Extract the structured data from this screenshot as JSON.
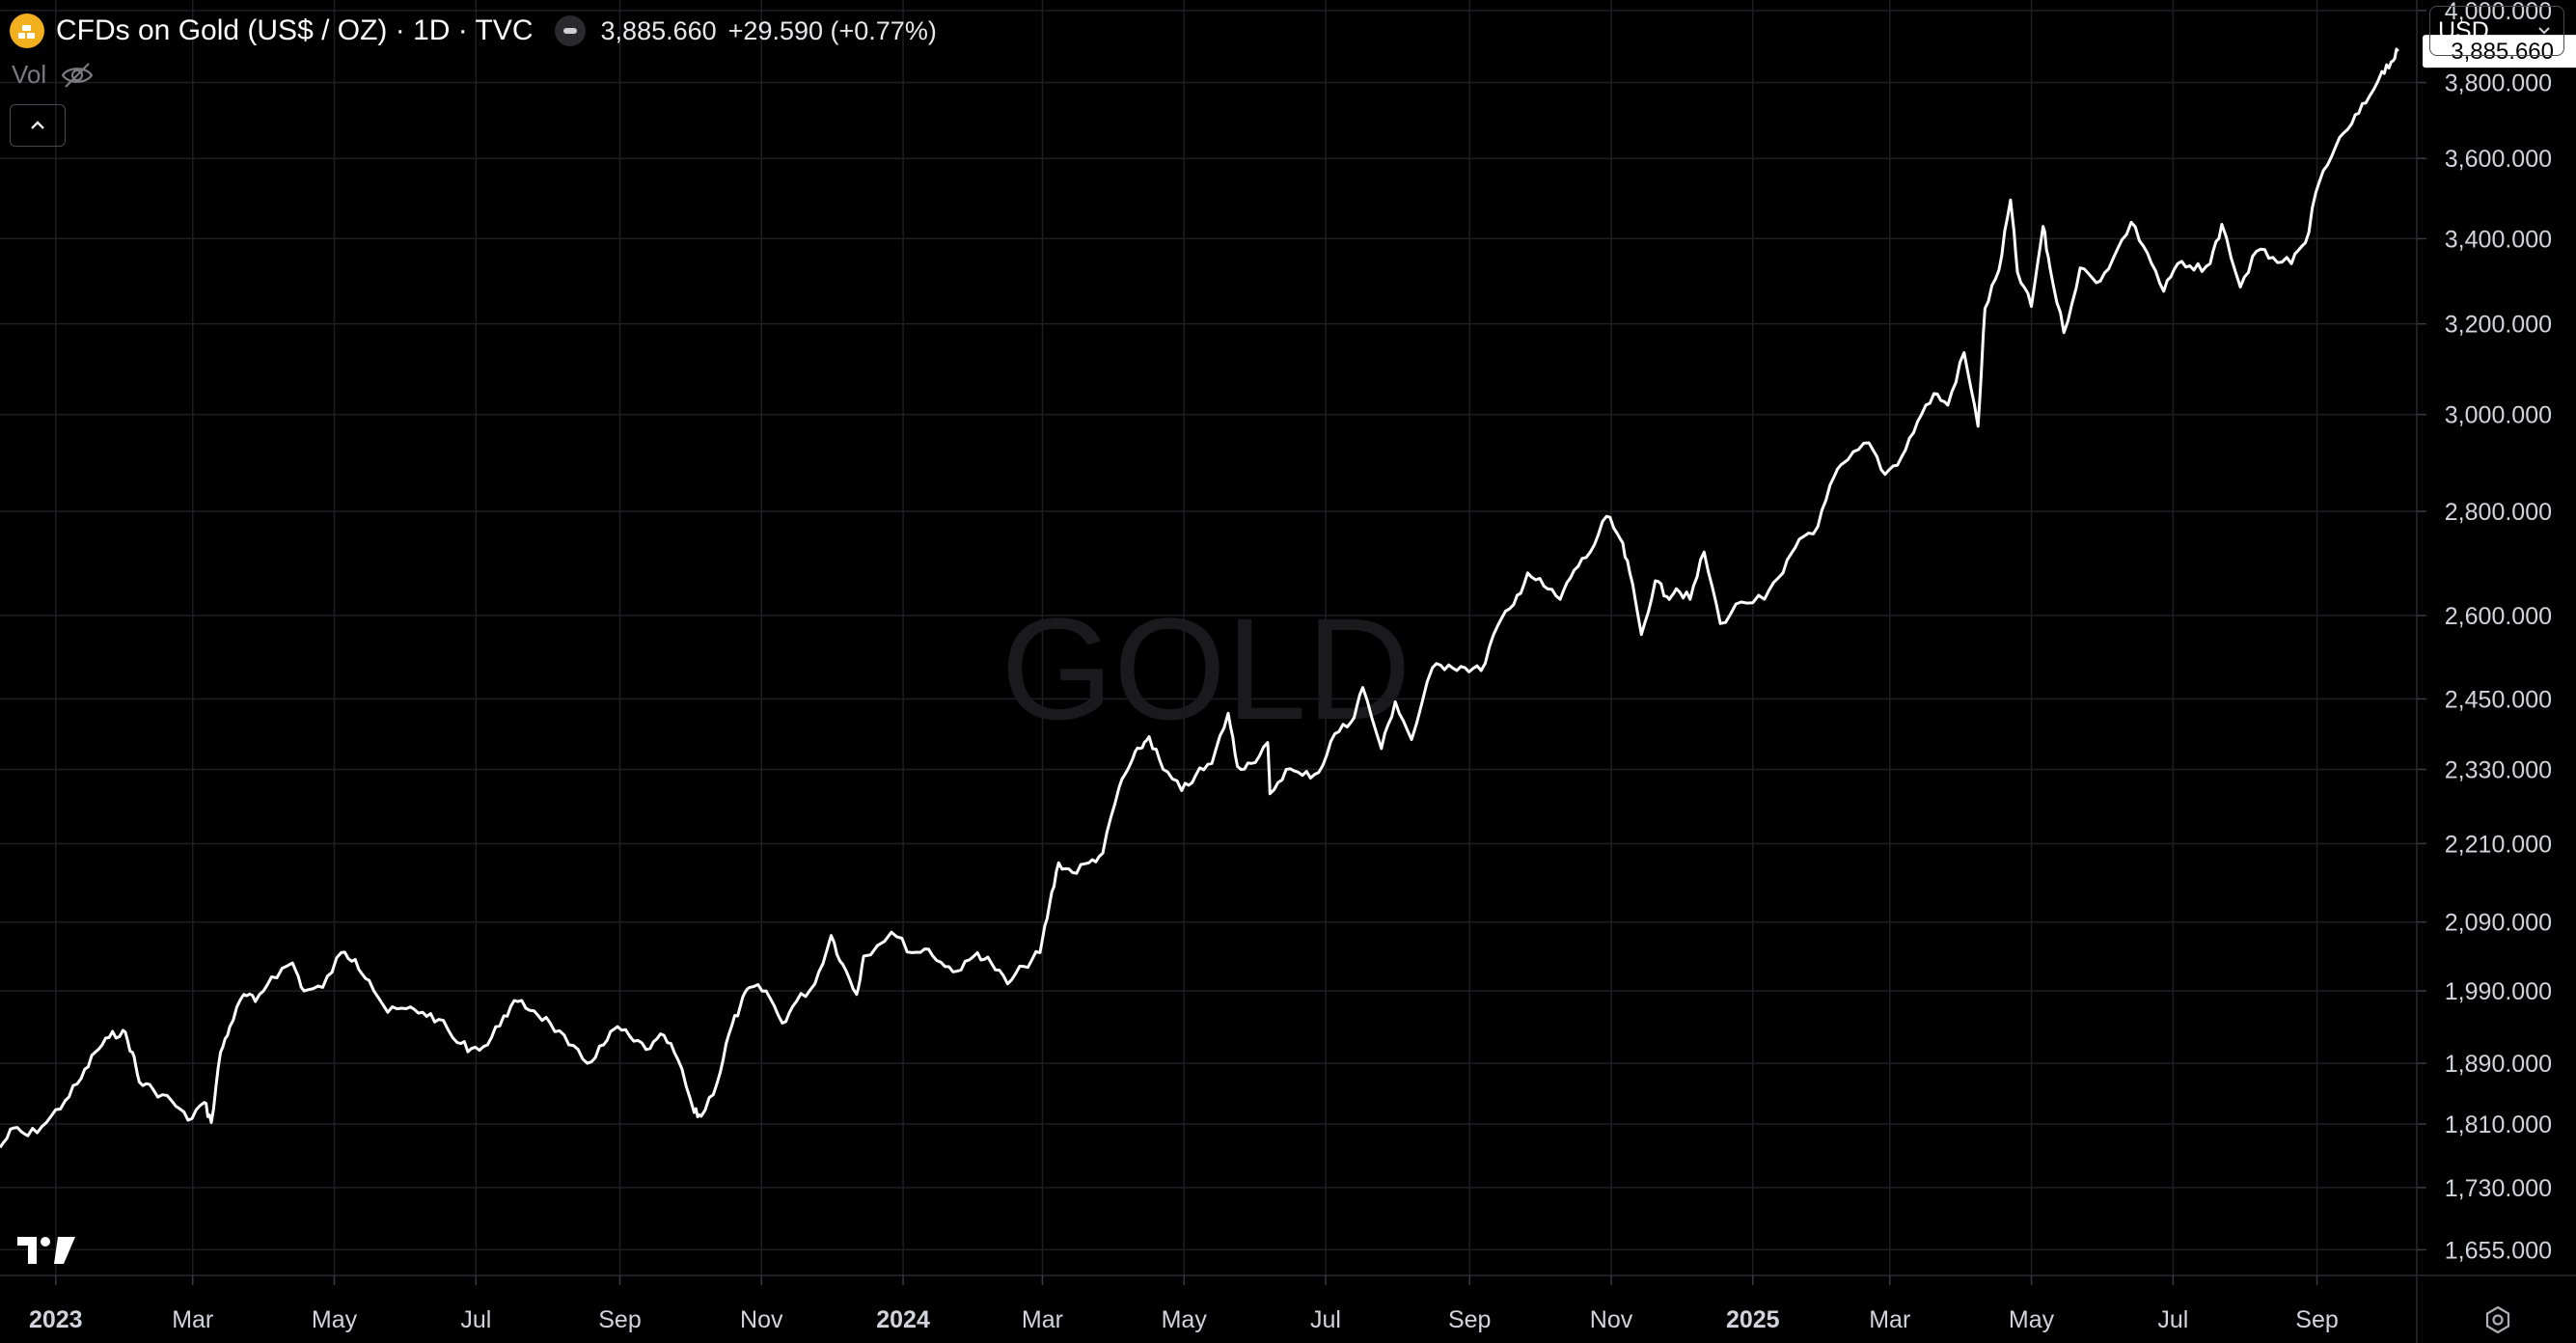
{
  "header": {
    "title": "CFDs on Gold (US$ / OZ) · 1D · TVC",
    "last_price": "3,885.660",
    "change": "+29.590 (+0.77%)",
    "icon": "gold-bars-icon"
  },
  "volume": {
    "label": "Vol",
    "icon": "eye-off-icon"
  },
  "collapse": {
    "icon": "chevron-up-icon"
  },
  "currency": {
    "label": "USD",
    "icon": "chevron-down-icon"
  },
  "colors": {
    "background": "#000000",
    "line": "#ffffff",
    "grid": "#1f1f22",
    "text": "#d1d4dc",
    "watermark": "#1a1a1c"
  },
  "chart_data": {
    "type": "line",
    "symbol_watermark": "GOLD",
    "y_scale": "log",
    "y_ticks": [
      1655,
      1730,
      1810,
      1890,
      1990,
      2090,
      2210,
      2330,
      2450,
      2600,
      2800,
      3000,
      3200,
      3400,
      3600,
      3800,
      4000
    ],
    "y_tick_labels": [
      "1,655.000",
      "1,730.000",
      "1,810.000",
      "1,890.000",
      "1,990.000",
      "2,090.000",
      "2,210.000",
      "2,330.000",
      "2,450.000",
      "2,600.000",
      "2,800.000",
      "3,000.000",
      "3,200.000",
      "3,400.000",
      "3,600.000",
      "3,800.000",
      "4,000.000"
    ],
    "x_ticks": [
      {
        "date": "2023-01-01",
        "label": "2023",
        "bold": true
      },
      {
        "date": "2023-03-01",
        "label": "Mar"
      },
      {
        "date": "2023-05-01",
        "label": "May"
      },
      {
        "date": "2023-07-01",
        "label": "Jul"
      },
      {
        "date": "2023-09-01",
        "label": "Sep"
      },
      {
        "date": "2023-11-01",
        "label": "Nov"
      },
      {
        "date": "2024-01-01",
        "label": "2024",
        "bold": true
      },
      {
        "date": "2024-03-01",
        "label": "Mar"
      },
      {
        "date": "2024-05-01",
        "label": "May"
      },
      {
        "date": "2024-07-01",
        "label": "Jul"
      },
      {
        "date": "2024-09-01",
        "label": "Sep"
      },
      {
        "date": "2024-11-01",
        "label": "Nov"
      },
      {
        "date": "2025-01-01",
        "label": "2025",
        "bold": true
      },
      {
        "date": "2025-03-01",
        "label": "Mar"
      },
      {
        "date": "2025-05-01",
        "label": "May"
      },
      {
        "date": "2025-07-01",
        "label": "Jul"
      },
      {
        "date": "2025-09-01",
        "label": "Sep"
      }
    ],
    "x_range": [
      "2022-12-08",
      "2025-10-14"
    ],
    "y_range": [
      1625,
      4030
    ],
    "last_value": 3885.66,
    "last_value_label": "3,885.660",
    "series": [
      {
        "points": [
          [
            "2022-12-08",
            1780
          ],
          [
            "2022-12-14",
            1805
          ],
          [
            "2022-12-20",
            1795
          ],
          [
            "2022-12-28",
            1812
          ],
          [
            "2023-01-05",
            1840
          ],
          [
            "2023-01-12",
            1870
          ],
          [
            "2023-01-18",
            1905
          ],
          [
            "2023-01-24",
            1925
          ],
          [
            "2023-01-30",
            1935
          ],
          [
            "2023-02-03",
            1905
          ],
          [
            "2023-02-06",
            1865
          ],
          [
            "2023-02-12",
            1855
          ],
          [
            "2023-02-20",
            1840
          ],
          [
            "2023-02-27",
            1815
          ],
          [
            "2023-03-06",
            1838
          ],
          [
            "2023-03-09",
            1812
          ],
          [
            "2023-03-13",
            1905
          ],
          [
            "2023-03-17",
            1940
          ],
          [
            "2023-03-23",
            1985
          ],
          [
            "2023-03-28",
            1975
          ],
          [
            "2023-04-04",
            2010
          ],
          [
            "2023-04-13",
            2030
          ],
          [
            "2023-04-18",
            1990
          ],
          [
            "2023-04-26",
            1995
          ],
          [
            "2023-05-04",
            2045
          ],
          [
            "2023-05-10",
            2035
          ],
          [
            "2023-05-16",
            2005
          ],
          [
            "2023-05-24",
            1960
          ],
          [
            "2023-06-01",
            1965
          ],
          [
            "2023-06-08",
            1960
          ],
          [
            "2023-06-15",
            1950
          ],
          [
            "2023-06-23",
            1918
          ],
          [
            "2023-06-29",
            1910
          ],
          [
            "2023-07-06",
            1915
          ],
          [
            "2023-07-13",
            1955
          ],
          [
            "2023-07-19",
            1975
          ],
          [
            "2023-07-26",
            1962
          ],
          [
            "2023-08-02",
            1945
          ],
          [
            "2023-08-10",
            1915
          ],
          [
            "2023-08-18",
            1890
          ],
          [
            "2023-08-25",
            1915
          ],
          [
            "2023-08-31",
            1940
          ],
          [
            "2023-09-07",
            1920
          ],
          [
            "2023-09-14",
            1910
          ],
          [
            "2023-09-20",
            1928
          ],
          [
            "2023-09-26",
            1895
          ],
          [
            "2023-10-03",
            1825
          ],
          [
            "2023-10-06",
            1820
          ],
          [
            "2023-10-13",
            1865
          ],
          [
            "2023-10-18",
            1930
          ],
          [
            "2023-10-23",
            1970
          ],
          [
            "2023-10-27",
            1995
          ],
          [
            "2023-11-03",
            1990
          ],
          [
            "2023-11-10",
            1945
          ],
          [
            "2023-11-16",
            1975
          ],
          [
            "2023-11-24",
            2000
          ],
          [
            "2023-12-01",
            2070
          ],
          [
            "2023-12-06",
            2028
          ],
          [
            "2023-12-12",
            1985
          ],
          [
            "2023-12-15",
            2040
          ],
          [
            "2023-12-27",
            2075
          ],
          [
            "2024-01-05",
            2045
          ],
          [
            "2024-01-12",
            2050
          ],
          [
            "2024-01-19",
            2025
          ],
          [
            "2024-01-26",
            2020
          ],
          [
            "2024-02-02",
            2045
          ],
          [
            "2024-02-08",
            2030
          ],
          [
            "2024-02-15",
            2000
          ],
          [
            "2024-02-22",
            2025
          ],
          [
            "2024-02-29",
            2045
          ],
          [
            "2024-03-04",
            2115
          ],
          [
            "2024-03-08",
            2180
          ],
          [
            "2024-03-14",
            2165
          ],
          [
            "2024-03-21",
            2180
          ],
          [
            "2024-03-27",
            2195
          ],
          [
            "2024-04-03",
            2300
          ],
          [
            "2024-04-08",
            2340
          ],
          [
            "2024-04-12",
            2365
          ],
          [
            "2024-04-16",
            2385
          ],
          [
            "2024-04-22",
            2330
          ],
          [
            "2024-04-30",
            2295
          ],
          [
            "2024-05-06",
            2320
          ],
          [
            "2024-05-13",
            2340
          ],
          [
            "2024-05-20",
            2425
          ],
          [
            "2024-05-24",
            2335
          ],
          [
            "2024-05-30",
            2340
          ],
          [
            "2024-06-06",
            2375
          ],
          [
            "2024-06-07",
            2290
          ],
          [
            "2024-06-14",
            2330
          ],
          [
            "2024-06-21",
            2320
          ],
          [
            "2024-06-28",
            2325
          ],
          [
            "2024-07-05",
            2390
          ],
          [
            "2024-07-12",
            2410
          ],
          [
            "2024-07-17",
            2470
          ],
          [
            "2024-07-25",
            2365
          ],
          [
            "2024-07-31",
            2445
          ],
          [
            "2024-08-07",
            2380
          ],
          [
            "2024-08-16",
            2505
          ],
          [
            "2024-08-23",
            2510
          ],
          [
            "2024-08-30",
            2505
          ],
          [
            "2024-09-06",
            2500
          ],
          [
            "2024-09-13",
            2580
          ],
          [
            "2024-09-20",
            2620
          ],
          [
            "2024-09-26",
            2680
          ],
          [
            "2024-10-03",
            2655
          ],
          [
            "2024-10-10",
            2630
          ],
          [
            "2024-10-16",
            2685
          ],
          [
            "2024-10-23",
            2720
          ],
          [
            "2024-10-30",
            2790
          ],
          [
            "2024-11-05",
            2745
          ],
          [
            "2024-11-09",
            2680
          ],
          [
            "2024-11-14",
            2565
          ],
          [
            "2024-11-20",
            2665
          ],
          [
            "2024-11-25",
            2635
          ],
          [
            "2024-11-29",
            2650
          ],
          [
            "2024-12-05",
            2630
          ],
          [
            "2024-12-11",
            2720
          ],
          [
            "2024-12-18",
            2585
          ],
          [
            "2024-12-27",
            2625
          ],
          [
            "2025-01-06",
            2630
          ],
          [
            "2025-01-14",
            2680
          ],
          [
            "2025-01-21",
            2745
          ],
          [
            "2025-01-29",
            2770
          ],
          [
            "2025-02-05",
            2870
          ],
          [
            "2025-02-11",
            2905
          ],
          [
            "2025-02-20",
            2940
          ],
          [
            "2025-02-27",
            2875
          ],
          [
            "2025-03-06",
            2910
          ],
          [
            "2025-03-13",
            2985
          ],
          [
            "2025-03-20",
            3045
          ],
          [
            "2025-03-26",
            3020
          ],
          [
            "2025-04-02",
            3135
          ],
          [
            "2025-04-08",
            2975
          ],
          [
            "2025-04-11",
            3235
          ],
          [
            "2025-04-17",
            3325
          ],
          [
            "2025-04-22",
            3495
          ],
          [
            "2025-04-25",
            3320
          ],
          [
            "2025-05-01",
            3240
          ],
          [
            "2025-05-06",
            3430
          ],
          [
            "2025-05-09",
            3330
          ],
          [
            "2025-05-15",
            3180
          ],
          [
            "2025-05-22",
            3330
          ],
          [
            "2025-05-29",
            3295
          ],
          [
            "2025-06-05",
            3350
          ],
          [
            "2025-06-13",
            3440
          ],
          [
            "2025-06-20",
            3365
          ],
          [
            "2025-06-27",
            3275
          ],
          [
            "2025-07-03",
            3340
          ],
          [
            "2025-07-10",
            3325
          ],
          [
            "2025-07-17",
            3340
          ],
          [
            "2025-07-22",
            3435
          ],
          [
            "2025-07-30",
            3285
          ],
          [
            "2025-08-06",
            3370
          ],
          [
            "2025-08-13",
            3355
          ],
          [
            "2025-08-21",
            3340
          ],
          [
            "2025-08-27",
            3390
          ],
          [
            "2025-09-02",
            3540
          ],
          [
            "2025-09-09",
            3630
          ],
          [
            "2025-09-16",
            3690
          ],
          [
            "2025-09-22",
            3745
          ],
          [
            "2025-09-29",
            3830
          ],
          [
            "2025-10-03",
            3856
          ],
          [
            "2025-10-06",
            3885.66
          ]
        ]
      }
    ]
  }
}
